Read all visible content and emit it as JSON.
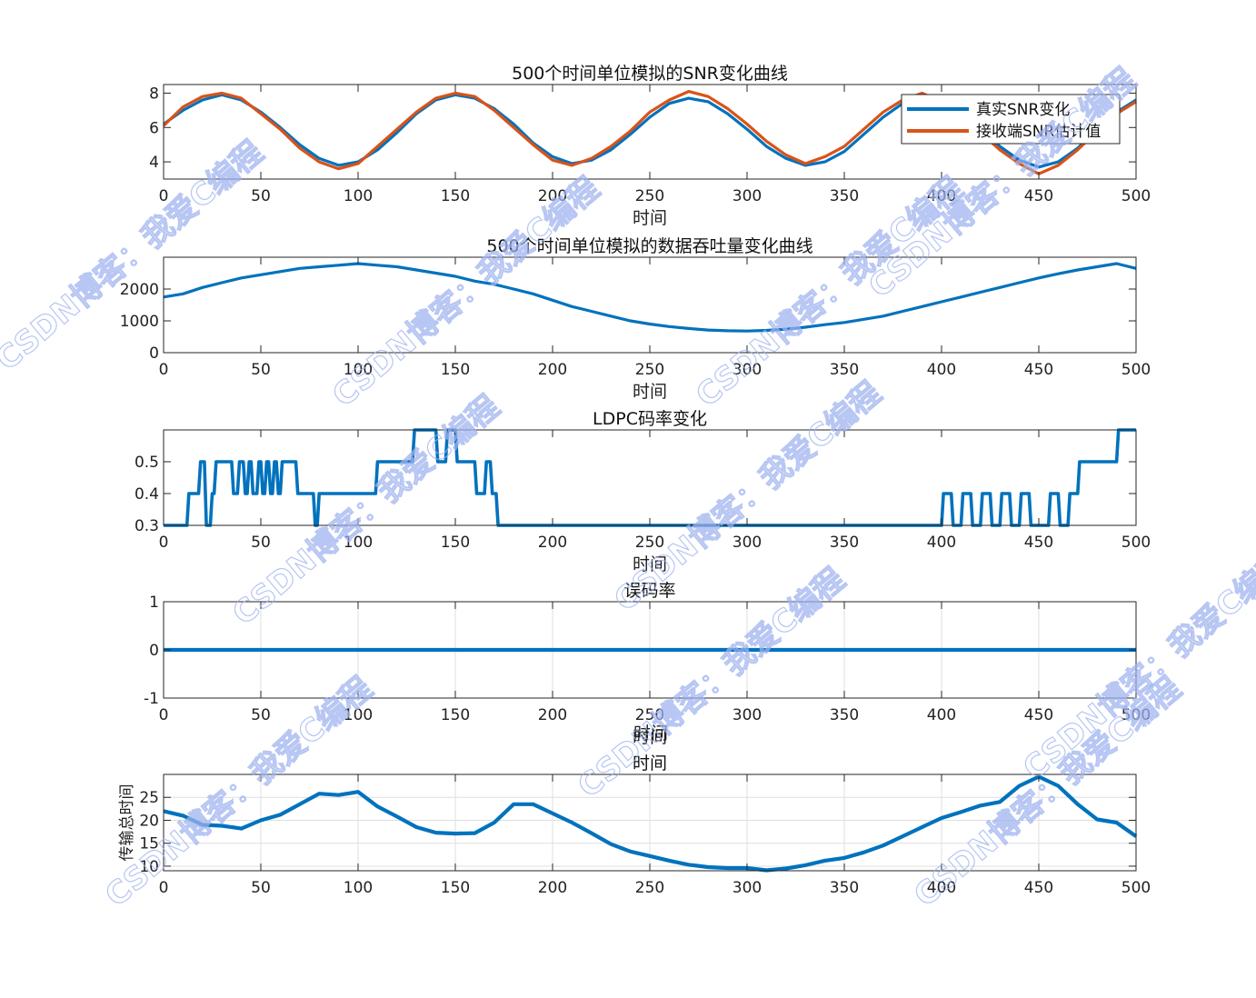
{
  "figure_texts": {
    "stray_label": "时间"
  },
  "watermark": {
    "text": "CSDN博客：我爱C编程",
    "color": "#9fb3f0"
  },
  "colors": {
    "series_blue": "#0072bd",
    "series_orange": "#d95319",
    "axes": "#262626",
    "grid": "#dfdfdf"
  },
  "chart_data": [
    {
      "type": "line",
      "title": "500个时间单位模拟的SNR变化曲线",
      "xlabel": "时间",
      "ylabel": "",
      "xlim": [
        0,
        500
      ],
      "ylim": [
        3,
        8.5
      ],
      "xticks": [
        0,
        50,
        100,
        150,
        200,
        250,
        300,
        350,
        400,
        450,
        500
      ],
      "yticks": [
        4,
        6,
        8
      ],
      "grid": false,
      "legend": "top-right",
      "series": [
        {
          "name": "真实SNR变化",
          "color": "#0072bd",
          "x": [
            0,
            10,
            20,
            30,
            40,
            50,
            60,
            70,
            80,
            90,
            100,
            110,
            120,
            130,
            140,
            150,
            160,
            170,
            180,
            190,
            200,
            210,
            220,
            230,
            240,
            250,
            260,
            270,
            280,
            290,
            300,
            310,
            320,
            330,
            340,
            350,
            360,
            370,
            380,
            390,
            400,
            410,
            420,
            430,
            440,
            450,
            460,
            470,
            480,
            490,
            500
          ],
          "y": [
            6.2,
            7.0,
            7.6,
            7.9,
            7.6,
            6.9,
            6.0,
            5.0,
            4.2,
            3.8,
            4.0,
            4.7,
            5.7,
            6.8,
            7.6,
            7.9,
            7.7,
            7.1,
            6.2,
            5.1,
            4.3,
            3.9,
            4.1,
            4.7,
            5.6,
            6.6,
            7.4,
            7.7,
            7.5,
            6.8,
            5.9,
            4.9,
            4.2,
            3.8,
            4.0,
            4.6,
            5.6,
            6.6,
            7.4,
            7.8,
            7.6,
            6.9,
            5.9,
            4.9,
            4.1,
            3.7,
            4.0,
            4.8,
            5.9,
            6.9,
            7.6
          ]
        },
        {
          "name": "接收端SNR估计值",
          "color": "#d95319",
          "x": [
            0,
            10,
            20,
            30,
            40,
            50,
            60,
            70,
            80,
            90,
            100,
            110,
            120,
            130,
            140,
            150,
            160,
            170,
            180,
            190,
            200,
            210,
            220,
            230,
            240,
            250,
            260,
            270,
            280,
            290,
            300,
            310,
            320,
            330,
            340,
            350,
            360,
            370,
            380,
            390,
            400,
            410,
            420,
            430,
            440,
            450,
            460,
            470,
            480,
            490,
            500
          ],
          "y": [
            6.1,
            7.2,
            7.8,
            8.0,
            7.7,
            6.8,
            5.9,
            4.8,
            4.0,
            3.6,
            3.9,
            4.9,
            5.9,
            6.9,
            7.7,
            8.0,
            7.8,
            7.0,
            6.0,
            5.0,
            4.1,
            3.8,
            4.2,
            4.9,
            5.8,
            6.9,
            7.6,
            8.1,
            7.8,
            7.1,
            6.2,
            5.2,
            4.4,
            3.9,
            4.3,
            4.9,
            5.9,
            6.9,
            7.6,
            8.0,
            7.5,
            6.7,
            5.7,
            4.7,
            3.9,
            3.3,
            3.8,
            4.7,
            5.8,
            6.8,
            7.5
          ]
        }
      ]
    },
    {
      "type": "line",
      "title": "500个时间单位模拟的数据吞吐量变化曲线",
      "xlabel": "时间",
      "ylabel": "",
      "xlim": [
        0,
        500
      ],
      "ylim": [
        0,
        3000
      ],
      "xticks": [
        0,
        50,
        100,
        150,
        200,
        250,
        300,
        350,
        400,
        450,
        500
      ],
      "yticks": [
        0,
        1000,
        2000
      ],
      "grid": false,
      "series": [
        {
          "color": "#0072bd",
          "x": [
            0,
            10,
            20,
            30,
            40,
            50,
            60,
            70,
            80,
            90,
            100,
            110,
            120,
            130,
            140,
            150,
            160,
            170,
            180,
            190,
            200,
            210,
            220,
            230,
            240,
            250,
            260,
            270,
            280,
            290,
            300,
            310,
            320,
            330,
            340,
            350,
            360,
            370,
            380,
            390,
            400,
            410,
            420,
            430,
            440,
            450,
            460,
            470,
            480,
            490,
            500
          ],
          "y": [
            1750,
            1850,
            2050,
            2200,
            2350,
            2450,
            2550,
            2650,
            2700,
            2750,
            2800,
            2750,
            2700,
            2600,
            2500,
            2400,
            2250,
            2150,
            2000,
            1850,
            1650,
            1450,
            1300,
            1150,
            1000,
            900,
            820,
            760,
            710,
            690,
            680,
            700,
            740,
            800,
            880,
            950,
            1050,
            1150,
            1300,
            1450,
            1600,
            1750,
            1900,
            2050,
            2200,
            2350,
            2480,
            2600,
            2700,
            2800,
            2650
          ]
        }
      ]
    },
    {
      "type": "line",
      "title": "LDPC码率变化",
      "xlabel": "时间",
      "ylabel": "",
      "xlim": [
        0,
        500
      ],
      "ylim": [
        0.3,
        0.6
      ],
      "xticks": [
        0,
        50,
        100,
        150,
        200,
        250,
        300,
        350,
        400,
        450,
        500
      ],
      "yticks": [
        0.3,
        0.4,
        0.5
      ],
      "grid": false,
      "series": [
        {
          "color": "#0072bd",
          "x": [
            0,
            12,
            13,
            18,
            19,
            21,
            22,
            24,
            25,
            26,
            27,
            35,
            36,
            38,
            39,
            41,
            42,
            43,
            44,
            45,
            46,
            48,
            49,
            50,
            51,
            52,
            53,
            54,
            55,
            56,
            57,
            58,
            59,
            60,
            61,
            68,
            69,
            77,
            78,
            79,
            80,
            109,
            110,
            128,
            129,
            140,
            141,
            145,
            146,
            150,
            151,
            160,
            161,
            165,
            166,
            168,
            169,
            171,
            172,
            178,
            179,
            400,
            401,
            405,
            406,
            410,
            411,
            415,
            416,
            420,
            421,
            425,
            426,
            430,
            431,
            435,
            436,
            440,
            441,
            445,
            446,
            455,
            456,
            460,
            461,
            465,
            466,
            470,
            471,
            480,
            481,
            490,
            491,
            492,
            493,
            500
          ],
          "y": [
            0.3,
            0.3,
            0.4,
            0.4,
            0.5,
            0.5,
            0.3,
            0.3,
            0.4,
            0.4,
            0.5,
            0.5,
            0.4,
            0.4,
            0.5,
            0.5,
            0.4,
            0.4,
            0.5,
            0.5,
            0.4,
            0.4,
            0.5,
            0.5,
            0.4,
            0.4,
            0.5,
            0.5,
            0.4,
            0.4,
            0.5,
            0.5,
            0.4,
            0.4,
            0.5,
            0.5,
            0.4,
            0.4,
            0.3,
            0.3,
            0.4,
            0.4,
            0.5,
            0.5,
            0.6,
            0.6,
            0.5,
            0.5,
            0.6,
            0.6,
            0.5,
            0.5,
            0.4,
            0.4,
            0.5,
            0.5,
            0.4,
            0.4,
            0.3,
            0.3,
            0.3,
            0.3,
            0.4,
            0.4,
            0.3,
            0.3,
            0.4,
            0.4,
            0.3,
            0.3,
            0.4,
            0.4,
            0.3,
            0.3,
            0.4,
            0.4,
            0.3,
            0.3,
            0.4,
            0.4,
            0.3,
            0.3,
            0.4,
            0.4,
            0.3,
            0.3,
            0.4,
            0.4,
            0.5,
            0.5,
            0.5,
            0.5,
            0.6,
            0.6,
            0.6,
            0.6
          ]
        }
      ]
    },
    {
      "type": "line",
      "title": "误码率",
      "xlabel": "时间",
      "ylabel": "",
      "xlim": [
        0,
        500
      ],
      "ylim": [
        -1,
        1
      ],
      "xticks": [
        0,
        50,
        100,
        150,
        200,
        250,
        300,
        350,
        400,
        450,
        500
      ],
      "yticks": [
        -1,
        0,
        1
      ],
      "grid": true,
      "series": [
        {
          "color": "#0072bd",
          "x": [
            0,
            500
          ],
          "y": [
            0,
            0
          ]
        }
      ]
    },
    {
      "type": "line",
      "title": "时间",
      "xlabel": "",
      "ylabel": "传输总时间",
      "xlim": [
        0,
        500
      ],
      "ylim": [
        9,
        30
      ],
      "xticks": [
        0,
        50,
        100,
        150,
        200,
        250,
        300,
        350,
        400,
        450,
        500
      ],
      "yticks": [
        10,
        15,
        20,
        25
      ],
      "grid": true,
      "series": [
        {
          "color": "#0072bd",
          "x": [
            0,
            10,
            20,
            30,
            40,
            50,
            60,
            70,
            80,
            90,
            100,
            110,
            120,
            130,
            140,
            150,
            160,
            170,
            180,
            190,
            200,
            210,
            220,
            230,
            240,
            250,
            260,
            270,
            280,
            290,
            300,
            310,
            320,
            330,
            340,
            350,
            360,
            370,
            380,
            390,
            400,
            410,
            420,
            430,
            440,
            450,
            460,
            470,
            480,
            490,
            500
          ],
          "y": [
            22,
            21,
            19,
            18.8,
            18.2,
            20,
            21.2,
            23.5,
            25.8,
            25.5,
            26.2,
            23,
            20.8,
            18.5,
            17.3,
            17.1,
            17.2,
            19.5,
            23.5,
            23.5,
            21.5,
            19.5,
            17.2,
            14.8,
            13.2,
            12.2,
            11.2,
            10.3,
            9.8,
            9.6,
            9.6,
            9.1,
            9.5,
            10.2,
            11.2,
            11.8,
            13.0,
            14.5,
            16.5,
            18.5,
            20.5,
            21.8,
            23.2,
            24.0,
            27.5,
            29.5,
            27.5,
            23.5,
            20.2,
            19.5,
            16.5
          ]
        }
      ]
    }
  ]
}
